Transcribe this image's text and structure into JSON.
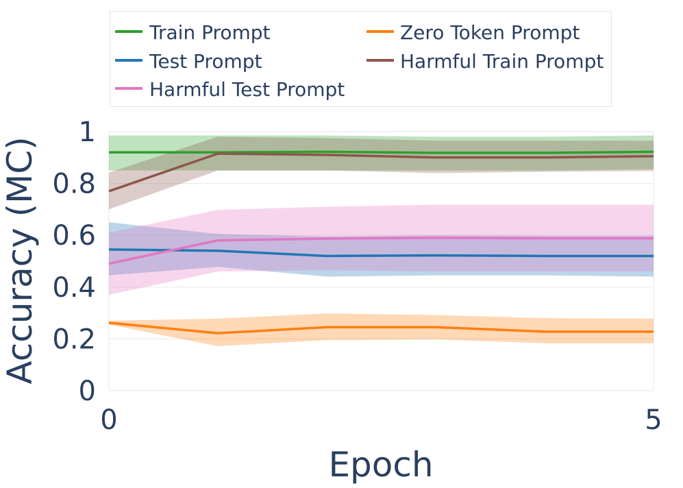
{
  "chart_data": {
    "type": "line",
    "xlabel": "Epoch",
    "ylabel": "Accuracy (MC)",
    "xlim": [
      0,
      5
    ],
    "ylim": [
      0,
      1
    ],
    "x_ticks": [
      0,
      5
    ],
    "x_tick_labels": [
      "0",
      "5"
    ],
    "y_ticks": [
      0,
      0.2,
      0.4,
      0.6,
      0.8,
      1
    ],
    "y_tick_labels": [
      "0",
      "0.2",
      "0.4",
      "0.6",
      "0.8",
      "1"
    ],
    "grid": true,
    "legend_position": "top",
    "x": [
      0,
      1,
      2,
      3,
      4,
      5
    ],
    "series": [
      {
        "name": "Train Prompt",
        "color": "#2ca02c",
        "values": [
          0.92,
          0.92,
          0.922,
          0.918,
          0.918,
          0.922
        ],
        "lower": [
          0.85,
          0.85,
          0.85,
          0.85,
          0.85,
          0.855
        ],
        "upper": [
          0.985,
          0.985,
          0.985,
          0.98,
          0.98,
          0.985
        ]
      },
      {
        "name": "Zero Token Prompt",
        "color": "#ff7f0e",
        "values": [
          0.262,
          0.222,
          0.245,
          0.245,
          0.228,
          0.228
        ],
        "lower": [
          0.255,
          0.172,
          0.195,
          0.198,
          0.183,
          0.183
        ],
        "upper": [
          0.27,
          0.278,
          0.298,
          0.292,
          0.28,
          0.278
        ]
      },
      {
        "name": "Test Prompt",
        "color": "#1f77b4",
        "values": [
          0.545,
          0.54,
          0.52,
          0.522,
          0.52,
          0.52
        ],
        "lower": [
          0.445,
          0.478,
          0.44,
          0.445,
          0.445,
          0.44
        ],
        "upper": [
          0.65,
          0.605,
          0.595,
          0.6,
          0.598,
          0.598
        ]
      },
      {
        "name": "Harmful Train Prompt",
        "color": "#8c564b",
        "values": [
          0.77,
          0.915,
          0.91,
          0.9,
          0.9,
          0.905
        ],
        "lower": [
          0.7,
          0.85,
          0.85,
          0.84,
          0.845,
          0.848
        ],
        "upper": [
          0.842,
          0.98,
          0.975,
          0.965,
          0.965,
          0.965
        ]
      },
      {
        "name": "Harmful Test Prompt",
        "color": "#e377c2",
        "values": [
          0.49,
          0.58,
          0.587,
          0.59,
          0.588,
          0.588
        ],
        "lower": [
          0.37,
          0.46,
          0.465,
          0.46,
          0.46,
          0.46
        ],
        "upper": [
          0.61,
          0.698,
          0.71,
          0.718,
          0.718,
          0.718
        ]
      }
    ]
  }
}
